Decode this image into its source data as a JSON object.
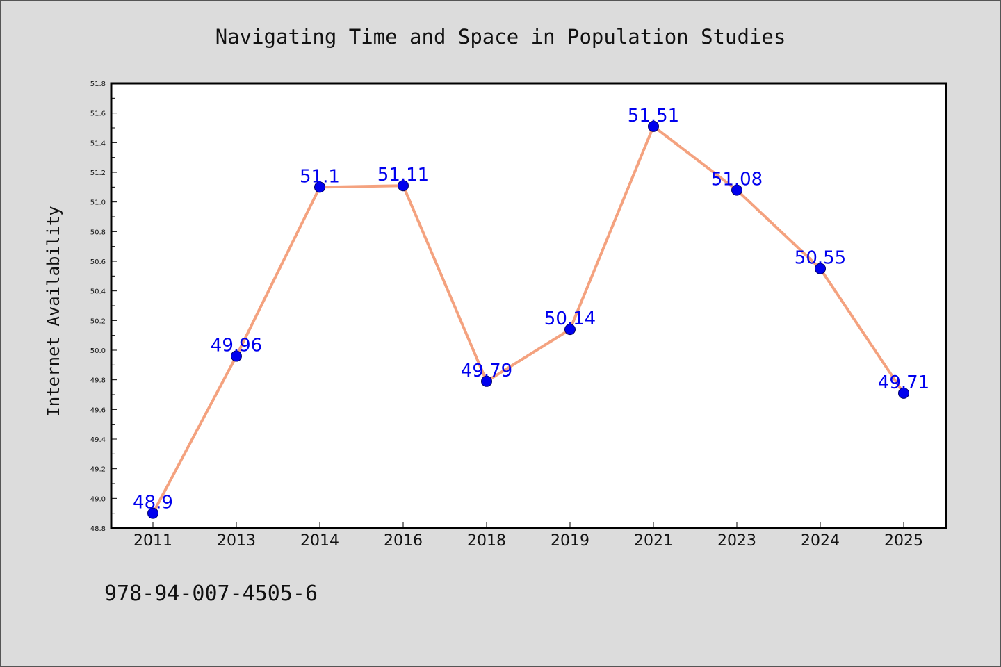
{
  "chart_data": {
    "type": "line",
    "title": "Navigating Time and Space in Population Studies",
    "xlabel": "",
    "ylabel": "Internet Availability",
    "categories": [
      "2011",
      "2013",
      "2014",
      "2016",
      "2018",
      "2019",
      "2021",
      "2023",
      "2024",
      "2025"
    ],
    "series": [
      {
        "values": [
          48.9,
          49.96,
          51.1,
          51.11,
          49.79,
          50.14,
          51.51,
          51.08,
          50.55,
          49.71
        ],
        "labels": [
          "48.9",
          "49.96",
          "51.1",
          "51.11",
          "49.79",
          "50.14",
          "51.51",
          "51.08",
          "50.55",
          "49.71"
        ],
        "line_color": "#f4a27f",
        "marker_color": "#0000ee"
      }
    ],
    "ylim": [
      48.8,
      51.8
    ],
    "yticks": [
      "48.8",
      "49.0",
      "49.2",
      "49.4",
      "49.6",
      "49.8",
      "50.0",
      "50.2",
      "50.4",
      "50.6",
      "50.8",
      "51.0",
      "51.2",
      "51.4",
      "51.6",
      "51.8"
    ],
    "grid": false,
    "legend": "none"
  },
  "footer": {
    "isbn": "978-94-007-4505-6"
  },
  "colors": {
    "background": "#dcdcdc",
    "plot_background": "#ffffff",
    "line": "#f4a27f",
    "marker": "#0000ee",
    "data_label": "#0000ee"
  }
}
